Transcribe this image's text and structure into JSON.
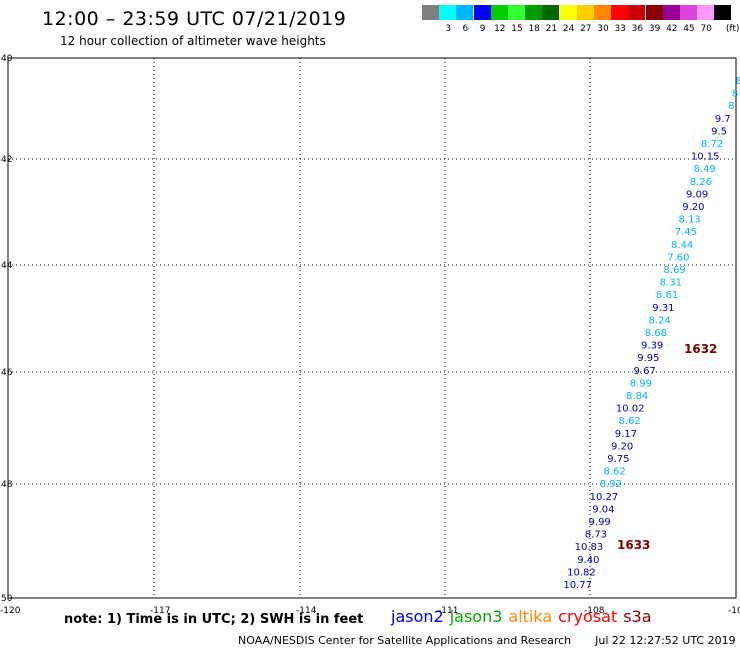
{
  "header": {
    "title": "12:00 – 23:59 UTC 07/21/2019",
    "subtitle": "12 hour collection of altimeter wave heights"
  },
  "color_scale": {
    "unit": "(ft)",
    "swatches": [
      {
        "color": "#7f7f7f",
        "label": ""
      },
      {
        "color": "#00ffff",
        "label": "3"
      },
      {
        "color": "#00b4ff",
        "label": "6"
      },
      {
        "color": "#0000ff",
        "label": "9"
      },
      {
        "color": "#00cc00",
        "label": "12"
      },
      {
        "color": "#33ff33",
        "label": "15"
      },
      {
        "color": "#009900",
        "label": "18"
      },
      {
        "color": "#006600",
        "label": "21"
      },
      {
        "color": "#ffff00",
        "label": "24"
      },
      {
        "color": "#ffcc00",
        "label": "27"
      },
      {
        "color": "#ff8800",
        "label": "30"
      },
      {
        "color": "#ff0000",
        "label": "33"
      },
      {
        "color": "#cc0000",
        "label": "36"
      },
      {
        "color": "#880000",
        "label": "39"
      },
      {
        "color": "#990099",
        "label": "42"
      },
      {
        "color": "#dd44dd",
        "label": "45"
      },
      {
        "color": "#ff99ff",
        "label": "70"
      },
      {
        "color": "#000000",
        "label": ""
      }
    ]
  },
  "map": {
    "lat_labels": [
      "40",
      "42",
      "44",
      "46",
      "48",
      "50"
    ],
    "lon_labels": [
      "-120",
      "-117",
      "-114",
      "-111",
      "-108",
      "-105"
    ],
    "colors": {
      "light": "#00b4ff",
      "dark": "#0000b4",
      "pass": "#7a0000"
    },
    "points": [
      {
        "v": "8",
        "c": "light"
      },
      {
        "v": "8",
        "c": "light"
      },
      {
        "v": "8",
        "c": "light"
      },
      {
        "v": "9.7",
        "c": "dark"
      },
      {
        "v": "9.5",
        "c": "dark"
      },
      {
        "v": "8.72",
        "c": "light"
      },
      {
        "v": "10.15",
        "c": "dark"
      },
      {
        "v": "8.49",
        "c": "light"
      },
      {
        "v": "8.26",
        "c": "light"
      },
      {
        "v": "9.09",
        "c": "dark"
      },
      {
        "v": "9.20",
        "c": "dark"
      },
      {
        "v": "8.13",
        "c": "light"
      },
      {
        "v": "7.45",
        "c": "light"
      },
      {
        "v": "8.44",
        "c": "light"
      },
      {
        "v": "7.60",
        "c": "light"
      },
      {
        "v": "8.69",
        "c": "light"
      },
      {
        "v": "8.31",
        "c": "light"
      },
      {
        "v": "8.61",
        "c": "light"
      },
      {
        "v": "9.31",
        "c": "dark"
      },
      {
        "v": "8.24",
        "c": "light"
      },
      {
        "v": "8.68",
        "c": "light"
      },
      {
        "v": "9.39",
        "c": "dark"
      },
      {
        "v": "9.95",
        "c": "dark"
      },
      {
        "v": "9.67",
        "c": "dark"
      },
      {
        "v": "8.99",
        "c": "light"
      },
      {
        "v": "8.84",
        "c": "light"
      },
      {
        "v": "10.02",
        "c": "dark"
      },
      {
        "v": "8.62",
        "c": "light"
      },
      {
        "v": "9.17",
        "c": "dark"
      },
      {
        "v": "9.20",
        "c": "dark"
      },
      {
        "v": "9.75",
        "c": "dark"
      },
      {
        "v": "8.62",
        "c": "light"
      },
      {
        "v": "8.92",
        "c": "light"
      },
      {
        "v": "10.27",
        "c": "dark"
      },
      {
        "v": "9.04",
        "c": "dark"
      },
      {
        "v": "9.99",
        "c": "dark"
      },
      {
        "v": "8.73",
        "c": "dark"
      },
      {
        "v": "10.83",
        "c": "dark"
      },
      {
        "v": "9.40",
        "c": "dark"
      },
      {
        "v": "10.82",
        "c": "dark"
      },
      {
        "v": "10.77",
        "c": "dark"
      }
    ],
    "pass_labels": [
      "1632",
      "1633"
    ]
  },
  "footer": {
    "note": "note:  1) Time is in UTC;  2) SWH is in feet",
    "satellites": [
      {
        "name": "jason2",
        "color": "#0000ff"
      },
      {
        "name": "jason3",
        "color": "#00aa00"
      },
      {
        "name": "altika",
        "color": "#ff8800"
      },
      {
        "name": "cryosat",
        "color": "#ff0000"
      },
      {
        "name": "s3a",
        "color": "#880000"
      }
    ],
    "credit": "NOAA/NESDIS Center for Satellite Applications and Research",
    "timestamp": "Jul 22 12:27:52 UTC 2019"
  }
}
